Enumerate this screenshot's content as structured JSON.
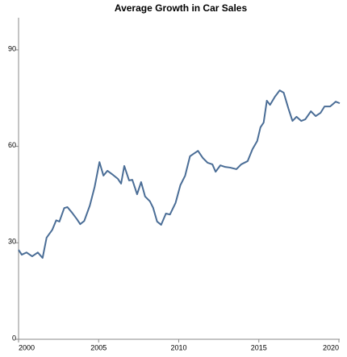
{
  "chart_data": {
    "type": "line",
    "title": "Average Growth in Car Sales",
    "x": [
      2000,
      2000.2,
      2000.5,
      2000.85,
      2001.2,
      2001.5,
      2001.75,
      2002.1,
      2002.35,
      2002.55,
      2002.85,
      2003.05,
      2003.35,
      2003.65,
      2003.85,
      2004.1,
      2004.45,
      2004.75,
      2005.05,
      2005.3,
      2005.55,
      2005.9,
      2006.2,
      2006.4,
      2006.6,
      2006.9,
      2007.1,
      2007.4,
      2007.65,
      2007.9,
      2008.2,
      2008.4,
      2008.65,
      2008.9,
      2009.2,
      2009.45,
      2009.8,
      2010.1,
      2010.4,
      2010.7,
      2010.9,
      2011.2,
      2011.5,
      2011.8,
      2012.1,
      2012.3,
      2012.6,
      2012.9,
      2013.2,
      2013.6,
      2013.9,
      2014.3,
      2014.6,
      2014.9,
      2015.1,
      2015.3,
      2015.5,
      2015.7,
      2016.0,
      2016.3,
      2016.55,
      2016.85,
      2017.1,
      2017.35,
      2017.65,
      2017.9,
      2018.25,
      2018.55,
      2018.85,
      2019.1,
      2019.45,
      2019.8,
      2020.05
    ],
    "series": [
      {
        "color": "#4a6d96",
        "values": [
          27.8,
          26.3,
          27,
          25.8,
          27,
          25.3,
          31.6,
          34,
          37,
          36.6,
          40.8,
          41.1,
          39.3,
          37.3,
          35.8,
          36.8,
          41.6,
          47.4,
          55.1,
          50.9,
          52.4,
          51.1,
          49.9,
          48.4,
          53.9,
          49.4,
          49.6,
          45.1,
          48.9,
          44.4,
          42.9,
          40.9,
          36.6,
          35.6,
          39.1,
          38.8,
          42.4,
          47.9,
          50.9,
          56.9,
          57.6,
          58.6,
          56.4,
          54.9,
          54.4,
          52.1,
          54.1,
          53.6,
          53.4,
          52.9,
          54.4,
          55.4,
          59.1,
          61.7,
          65.9,
          67.4,
          74.2,
          72.9,
          75.4,
          77.4,
          76.7,
          71.7,
          67.9,
          69.2,
          67.9,
          68.4,
          70.9,
          69.4,
          70.4,
          72.4,
          72.4,
          73.9,
          73.4
        ]
      }
    ],
    "xlim": [
      2000,
      2020.05
    ],
    "xticks": [
      2000,
      2005,
      2010,
      2015,
      2020
    ],
    "ylim": [
      0,
      100
    ],
    "yticks": [
      0,
      30,
      60,
      90
    ],
    "grid": false
  }
}
